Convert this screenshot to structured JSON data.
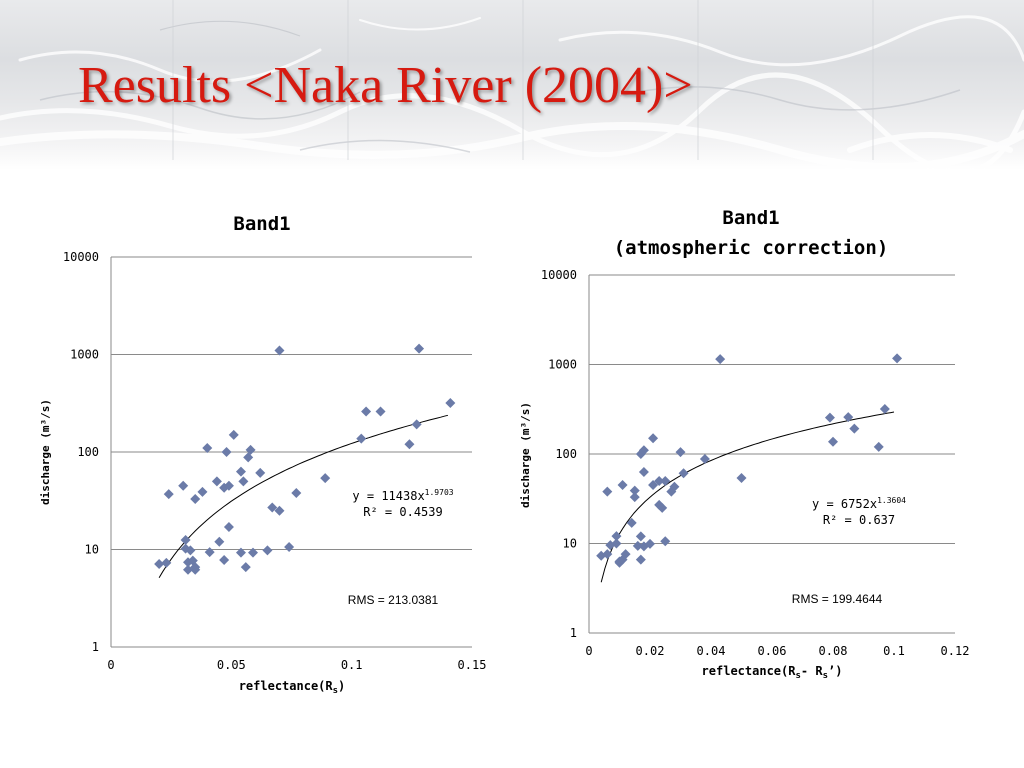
{
  "slide": {
    "title": "Results <Naka River (2004)>"
  },
  "chart_data": [
    {
      "type": "scatter",
      "title": "Band1",
      "subtitle": "",
      "xlabel": "reflectance(R",
      "xlabel_sub": "s",
      "xlabel_tail": ")",
      "ylabel": "discharge (m³/s)",
      "xscale": "linear",
      "yscale": "log",
      "xlim": [
        0,
        0.15
      ],
      "ylim": [
        1,
        10000
      ],
      "x_ticks": [
        "0",
        "0.05",
        "0.1",
        "0.15"
      ],
      "y_ticks": [
        "1",
        "10",
        "100",
        "1000",
        "10000"
      ],
      "grid": "horizontal",
      "marker_color": "#6b7ba8",
      "series": [
        {
          "points": [
            {
              "x": 0.02,
              "y": 7.1
            },
            {
              "x": 0.023,
              "y": 7.3
            },
            {
              "x": 0.024,
              "y": 37
            },
            {
              "x": 0.03,
              "y": 45
            },
            {
              "x": 0.031,
              "y": 12.5
            },
            {
              "x": 0.031,
              "y": 10.2
            },
            {
              "x": 0.032,
              "y": 7.4
            },
            {
              "x": 0.032,
              "y": 6.2
            },
            {
              "x": 0.033,
              "y": 9.8
            },
            {
              "x": 0.034,
              "y": 7.7
            },
            {
              "x": 0.035,
              "y": 6.2
            },
            {
              "x": 0.035,
              "y": 6.6
            },
            {
              "x": 0.035,
              "y": 33
            },
            {
              "x": 0.038,
              "y": 39
            },
            {
              "x": 0.04,
              "y": 110
            },
            {
              "x": 0.041,
              "y": 9.4
            },
            {
              "x": 0.044,
              "y": 50
            },
            {
              "x": 0.045,
              "y": 12
            },
            {
              "x": 0.047,
              "y": 43
            },
            {
              "x": 0.047,
              "y": 7.8
            },
            {
              "x": 0.048,
              "y": 100
            },
            {
              "x": 0.049,
              "y": 45
            },
            {
              "x": 0.049,
              "y": 17
            },
            {
              "x": 0.051,
              "y": 150
            },
            {
              "x": 0.054,
              "y": 63
            },
            {
              "x": 0.054,
              "y": 9.3
            },
            {
              "x": 0.055,
              "y": 50
            },
            {
              "x": 0.056,
              "y": 6.6
            },
            {
              "x": 0.057,
              "y": 88
            },
            {
              "x": 0.058,
              "y": 105
            },
            {
              "x": 0.059,
              "y": 9.3
            },
            {
              "x": 0.062,
              "y": 61
            },
            {
              "x": 0.065,
              "y": 9.8
            },
            {
              "x": 0.067,
              "y": 27
            },
            {
              "x": 0.07,
              "y": 1100
            },
            {
              "x": 0.07,
              "y": 25
            },
            {
              "x": 0.074,
              "y": 10.6
            },
            {
              "x": 0.077,
              "y": 38
            },
            {
              "x": 0.089,
              "y": 54
            },
            {
              "x": 0.104,
              "y": 137
            },
            {
              "x": 0.106,
              "y": 260
            },
            {
              "x": 0.112,
              "y": 260
            },
            {
              "x": 0.124,
              "y": 120
            },
            {
              "x": 0.127,
              "y": 192
            },
            {
              "x": 0.128,
              "y": 1150
            },
            {
              "x": 0.141,
              "y": 318
            }
          ]
        }
      ],
      "trendline": {
        "type": "power",
        "coef": 11438,
        "exponent": 1.9703,
        "x_range": [
          0.02,
          0.14
        ]
      },
      "equation_base": "y = 11438x",
      "equation_exp": "1.9703",
      "r2_label": "R² = 0.4539",
      "rms_label": "RMS = 213.0381"
    },
    {
      "type": "scatter",
      "title": "Band1",
      "subtitle": "(atmospheric correction)",
      "xlabel": "reflectance(R",
      "xlabel_sub": "s",
      "xlabel_tail": "- R",
      "xlabel_sub2": "s",
      "xlabel_tail2": "’)",
      "ylabel": "discharge (m³/s)",
      "xscale": "linear",
      "yscale": "log",
      "xlim": [
        0,
        0.12
      ],
      "ylim": [
        1,
        10000
      ],
      "x_ticks": [
        "0",
        "0.02",
        "0.04",
        "0.06",
        "0.08",
        "0.1",
        "0.12"
      ],
      "y_ticks": [
        "1",
        "10",
        "100",
        "1000",
        "10000"
      ],
      "grid": "horizontal",
      "marker_color": "#6b7ba8",
      "series": [
        {
          "points": [
            {
              "x": 0.004,
              "y": 7.3
            },
            {
              "x": 0.006,
              "y": 38
            },
            {
              "x": 0.006,
              "y": 7.6
            },
            {
              "x": 0.007,
              "y": 9.6
            },
            {
              "x": 0.009,
              "y": 12.1
            },
            {
              "x": 0.009,
              "y": 10.0
            },
            {
              "x": 0.01,
              "y": 6.3
            },
            {
              "x": 0.01,
              "y": 6.1
            },
            {
              "x": 0.011,
              "y": 45
            },
            {
              "x": 0.011,
              "y": 6.6
            },
            {
              "x": 0.012,
              "y": 7.6
            },
            {
              "x": 0.014,
              "y": 17
            },
            {
              "x": 0.015,
              "y": 39
            },
            {
              "x": 0.015,
              "y": 33
            },
            {
              "x": 0.016,
              "y": 9.4
            },
            {
              "x": 0.017,
              "y": 12
            },
            {
              "x": 0.017,
              "y": 6.6
            },
            {
              "x": 0.017,
              "y": 100
            },
            {
              "x": 0.018,
              "y": 110
            },
            {
              "x": 0.018,
              "y": 63
            },
            {
              "x": 0.018,
              "y": 9.3
            },
            {
              "x": 0.02,
              "y": 9.9
            },
            {
              "x": 0.021,
              "y": 150
            },
            {
              "x": 0.021,
              "y": 45
            },
            {
              "x": 0.023,
              "y": 50
            },
            {
              "x": 0.023,
              "y": 27
            },
            {
              "x": 0.024,
              "y": 25
            },
            {
              "x": 0.025,
              "y": 50
            },
            {
              "x": 0.025,
              "y": 10.6
            },
            {
              "x": 0.027,
              "y": 38
            },
            {
              "x": 0.028,
              "y": 43
            },
            {
              "x": 0.03,
              "y": 105
            },
            {
              "x": 0.031,
              "y": 61
            },
            {
              "x": 0.038,
              "y": 88
            },
            {
              "x": 0.043,
              "y": 1150
            },
            {
              "x": 0.05,
              "y": 54
            },
            {
              "x": 0.079,
              "y": 255
            },
            {
              "x": 0.08,
              "y": 137
            },
            {
              "x": 0.085,
              "y": 258
            },
            {
              "x": 0.087,
              "y": 192
            },
            {
              "x": 0.095,
              "y": 120
            },
            {
              "x": 0.097,
              "y": 318
            },
            {
              "x": 0.101,
              "y": 1170
            }
          ]
        }
      ],
      "trendline": {
        "type": "power",
        "coef": 6752,
        "exponent": 1.3604,
        "x_range": [
          0.004,
          0.1
        ]
      },
      "equation_base": "y = 6752x",
      "equation_exp": "1.3604",
      "r2_label": "R² = 0.637",
      "rms_label": "RMS = 199.4644"
    }
  ]
}
